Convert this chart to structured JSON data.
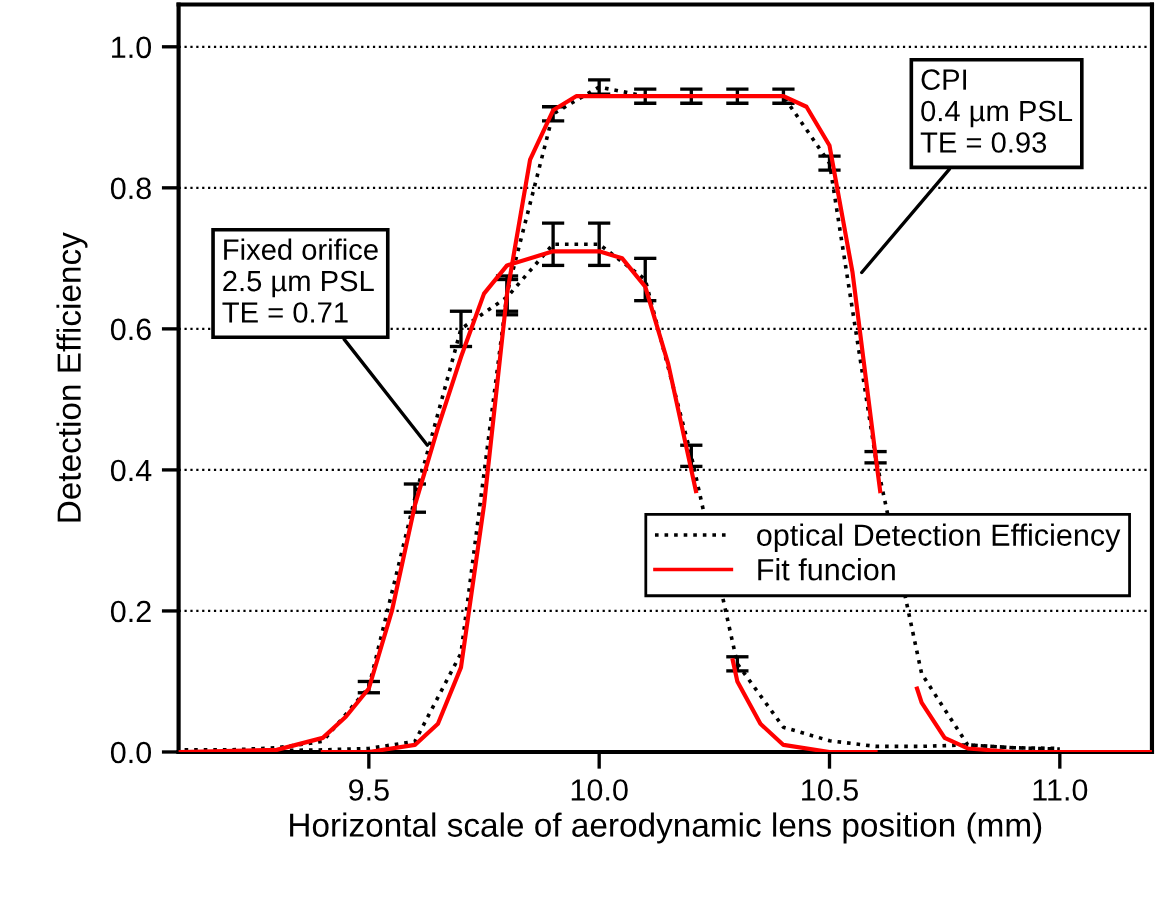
{
  "chart_data": {
    "type": "line",
    "xlabel": "Horizontal scale of aerodynamic lens position (mm)",
    "ylabel": "Detection Efficiency",
    "xlim": [
      9.087,
      11.2
    ],
    "ylim": [
      0,
      1.06
    ],
    "xticks": [
      {
        "value": 9.5,
        "label": "9.5"
      },
      {
        "value": 10.0,
        "label": "10.0"
      },
      {
        "value": 10.5,
        "label": "10.5"
      },
      {
        "value": 11.0,
        "label": "11.0"
      }
    ],
    "yticks": [
      {
        "value": 0,
        "label": "0.0"
      },
      {
        "value": 0.2,
        "label": "0.2"
      },
      {
        "value": 0.4,
        "label": "0.4"
      },
      {
        "value": 0.6,
        "label": "0.6"
      },
      {
        "value": 0.8,
        "label": "0.8"
      },
      {
        "value": 1.0,
        "label": "1.0"
      }
    ],
    "grid": "y",
    "legend": "bottom right",
    "marker": "none",
    "series": [
      {
        "name": "optical Detection Efficiency",
        "color": "#000000",
        "line_style": "dotted",
        "x": [
          9.1,
          9.2,
          9.3,
          9.4,
          9.5,
          9.6,
          9.7,
          9.8,
          9.9,
          10.0,
          10.1,
          10.2,
          10.3,
          10.4,
          10.5,
          10.6,
          10.7,
          10.8,
          10.9,
          11.0
        ],
        "values": [
          0.003,
          0.003,
          0.006,
          0.015,
          0.092,
          0.36,
          0.6,
          0.645,
          0.72,
          0.72,
          0.67,
          0.42,
          0.125,
          0.035,
          0.016,
          0.008,
          0.008,
          0.01,
          0.006,
          0.004
        ],
        "errors": [
          null,
          null,
          null,
          null,
          0.008,
          0.02,
          0.025,
          0.025,
          0.03,
          0.03,
          0.03,
          0.015,
          0.01,
          null,
          null,
          null,
          null,
          null,
          null,
          null
        ]
      },
      {
        "color": "#000000",
        "line_style": "dotted",
        "x": [
          9.1,
          9.2,
          9.3,
          9.4,
          9.5,
          9.6,
          9.7,
          9.8,
          9.9,
          10.0,
          10.1,
          10.2,
          10.3,
          10.4,
          10.5,
          10.6,
          10.7,
          10.8,
          10.9,
          11.0
        ],
        "values": [
          0.0,
          0.0,
          0.002,
          0.003,
          0.005,
          0.015,
          0.14,
          0.65,
          0.905,
          0.943,
          0.93,
          0.93,
          0.93,
          0.93,
          0.835,
          0.418,
          0.111,
          0.01,
          0.006,
          0.005
        ],
        "errors": [
          null,
          null,
          null,
          null,
          null,
          null,
          null,
          0.025,
          0.01,
          0.01,
          0.01,
          0.01,
          0.01,
          0.01,
          0.01,
          0.008,
          null,
          null,
          null,
          null
        ]
      },
      {
        "name": "Fit funcion",
        "color": "#ff0000",
        "line_style": "solid",
        "x": [
          9.09,
          9.3,
          9.4,
          9.45,
          9.5,
          9.55,
          9.6,
          9.65,
          9.7,
          9.75,
          9.8,
          9.9,
          10.0,
          10.05,
          10.1,
          10.15,
          10.2,
          10.21,
          10.25,
          10.29,
          10.3,
          10.35,
          10.4,
          10.5,
          10.6
        ],
        "values": [
          0.0,
          0.003,
          0.02,
          0.05,
          0.09,
          0.2,
          0.35,
          0.46,
          0.56,
          0.65,
          0.69,
          0.71,
          0.71,
          0.7,
          0.66,
          0.55,
          0.4,
          0.37,
          null,
          0.13,
          0.1,
          0.04,
          0.01,
          0.0,
          0.0
        ]
      },
      {
        "color": "#ff0000",
        "line_style": "solid",
        "x": [
          9.4,
          9.5,
          9.6,
          9.65,
          9.7,
          9.75,
          9.8,
          9.85,
          9.9,
          9.95,
          10.4,
          10.45,
          10.5,
          10.55,
          10.6,
          10.61,
          10.65,
          10.69,
          10.7,
          10.75,
          10.8,
          10.9,
          11.2
        ],
        "values": [
          0.0,
          0.0,
          0.01,
          0.04,
          0.12,
          0.35,
          0.65,
          0.84,
          0.91,
          0.93,
          0.93,
          0.915,
          0.86,
          0.68,
          0.42,
          0.37,
          null,
          0.09,
          0.07,
          0.02,
          0.005,
          0.0,
          0.0
        ]
      }
    ],
    "annotations": [
      {
        "text": "Fixed orifice\n2.5 µm PSL\nTE = 0.71",
        "x": 9.627,
        "y": 0.435
      },
      {
        "text": "CPI\n0.4 µm PSL\nTE = 0.93",
        "x": 10.57,
        "y": 0.68
      }
    ]
  }
}
